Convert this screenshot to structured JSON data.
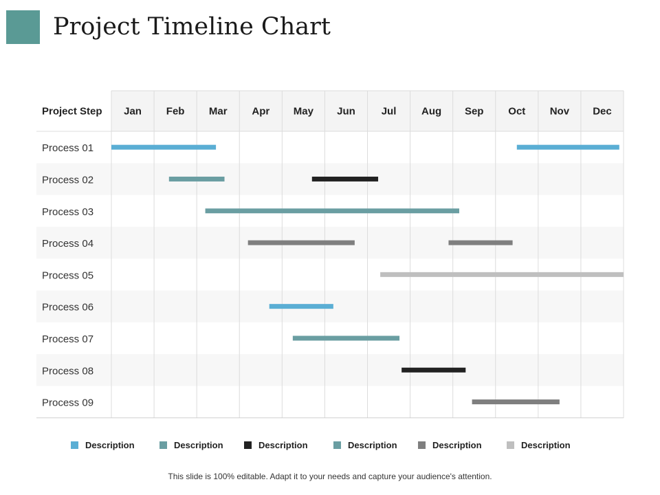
{
  "title": "Project Timeline Chart",
  "accent_color": "#5a9a95",
  "chart_data": {
    "type": "gantt",
    "header_label": "Project Step",
    "months": [
      "Jan",
      "Feb",
      "Mar",
      "Apr",
      "May",
      "Jun",
      "Jul",
      "Aug",
      "Sep",
      "Oct",
      "Nov",
      "Dec"
    ],
    "tasks": [
      {
        "label": "Process 01",
        "segments": [
          {
            "start": 0.0,
            "end": 2.45,
            "legend": 0
          },
          {
            "start": 9.5,
            "end": 11.9,
            "legend": 0
          }
        ]
      },
      {
        "label": "Process 02",
        "segments": [
          {
            "start": 1.35,
            "end": 2.65,
            "legend": 1
          },
          {
            "start": 4.7,
            "end": 6.25,
            "legend": 2
          }
        ]
      },
      {
        "label": "Process 03",
        "segments": [
          {
            "start": 2.2,
            "end": 8.15,
            "legend": 3
          }
        ]
      },
      {
        "label": "Process 04",
        "segments": [
          {
            "start": 3.2,
            "end": 5.7,
            "legend": 4
          },
          {
            "start": 7.9,
            "end": 9.4,
            "legend": 4
          }
        ]
      },
      {
        "label": "Process 05",
        "segments": [
          {
            "start": 6.3,
            "end": 12.0,
            "legend": 5
          }
        ]
      },
      {
        "label": "Process 06",
        "segments": [
          {
            "start": 3.7,
            "end": 5.2,
            "legend": 0
          }
        ]
      },
      {
        "label": "Process 07",
        "segments": [
          {
            "start": 4.25,
            "end": 6.75,
            "legend": 3
          }
        ]
      },
      {
        "label": "Process 08",
        "segments": [
          {
            "start": 6.8,
            "end": 8.3,
            "legend": 2
          }
        ]
      },
      {
        "label": "Process 09",
        "segments": [
          {
            "start": 8.45,
            "end": 10.5,
            "legend": 4
          }
        ]
      }
    ],
    "legend": [
      {
        "label": "Description",
        "color": "#5aaed4"
      },
      {
        "label": "Description",
        "color": "#6a9ea2"
      },
      {
        "label": "Description",
        "color": "#222222"
      },
      {
        "label": "Description",
        "color": "#6a9ea2"
      },
      {
        "label": "Description",
        "color": "#7f7f7f"
      },
      {
        "label": "Description",
        "color": "#bfbfbf"
      }
    ]
  },
  "footer": "This slide is 100% editable. Adapt it to your needs and capture your audience's attention."
}
